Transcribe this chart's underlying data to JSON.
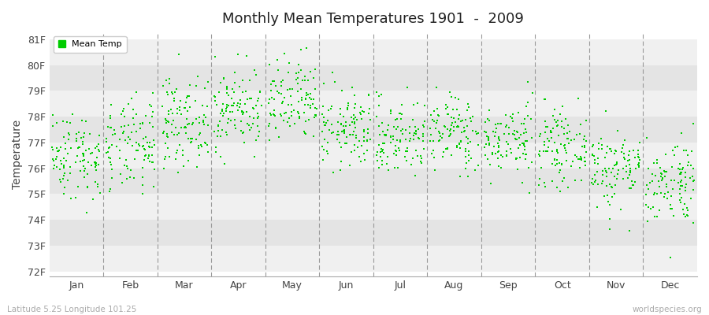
{
  "title": "Monthly Mean Temperatures 1901  -  2009",
  "ylabel": "Temperature",
  "xlabel_labels": [
    "Jan",
    "Feb",
    "Mar",
    "Apr",
    "May",
    "Jun",
    "Jul",
    "Aug",
    "Sep",
    "Oct",
    "Nov",
    "Dec"
  ],
  "ytick_labels": [
    "72F",
    "73F",
    "74F",
    "75F",
    "76F",
    "77F",
    "78F",
    "79F",
    "80F",
    "81F"
  ],
  "ytick_values": [
    72,
    73,
    74,
    75,
    76,
    77,
    78,
    79,
    80,
    81
  ],
  "ylim": [
    71.8,
    81.3
  ],
  "legend_label": "Mean Temp",
  "dot_color": "#00cc00",
  "dot_size": 3,
  "background_color": "#ffffff",
  "band_light": "#f0f0f0",
  "band_dark": "#e4e4e4",
  "vline_color": "#999999",
  "subtitle": "Latitude 5.25 Longitude 101.25",
  "watermark": "worldspecies.org",
  "n_years": 109,
  "seed": 42,
  "monthly_means": [
    76.5,
    76.8,
    77.8,
    78.3,
    78.5,
    77.5,
    77.2,
    77.4,
    77.1,
    76.8,
    76.0,
    75.5
  ],
  "monthly_stds": [
    0.85,
    0.9,
    0.85,
    0.8,
    0.85,
    0.75,
    0.75,
    0.75,
    0.7,
    0.7,
    0.8,
    0.85
  ]
}
